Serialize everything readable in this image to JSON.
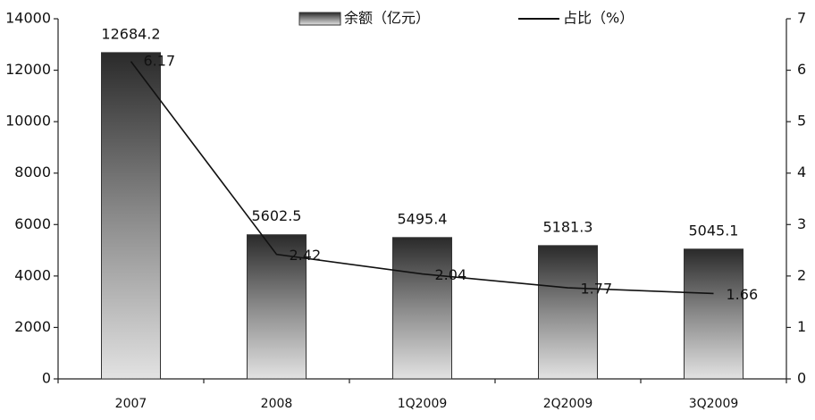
{
  "chart_data": {
    "type": "bar",
    "categories": [
      "2007",
      "2008",
      "1Q2009",
      "2Q2009",
      "3Q2009"
    ],
    "series": [
      {
        "name": "余额（亿元）",
        "type": "bar",
        "color": "#808080",
        "values": [
          12684.2,
          5602.5,
          5495.4,
          5181.3,
          5045.1
        ]
      },
      {
        "name": "占比（%）",
        "type": "line",
        "axis": "y2",
        "color": "#111111",
        "values": [
          6.17,
          2.42,
          2.04,
          1.77,
          1.66
        ]
      }
    ],
    "ylim": [
      0,
      14000
    ],
    "yticks": [
      0,
      2000,
      4000,
      6000,
      8000,
      10000,
      12000,
      14000
    ],
    "y2lim": [
      0,
      7
    ],
    "y2ticks": [
      0,
      1,
      2,
      3,
      4,
      5,
      6,
      7
    ],
    "grid": false,
    "legend": "top"
  }
}
